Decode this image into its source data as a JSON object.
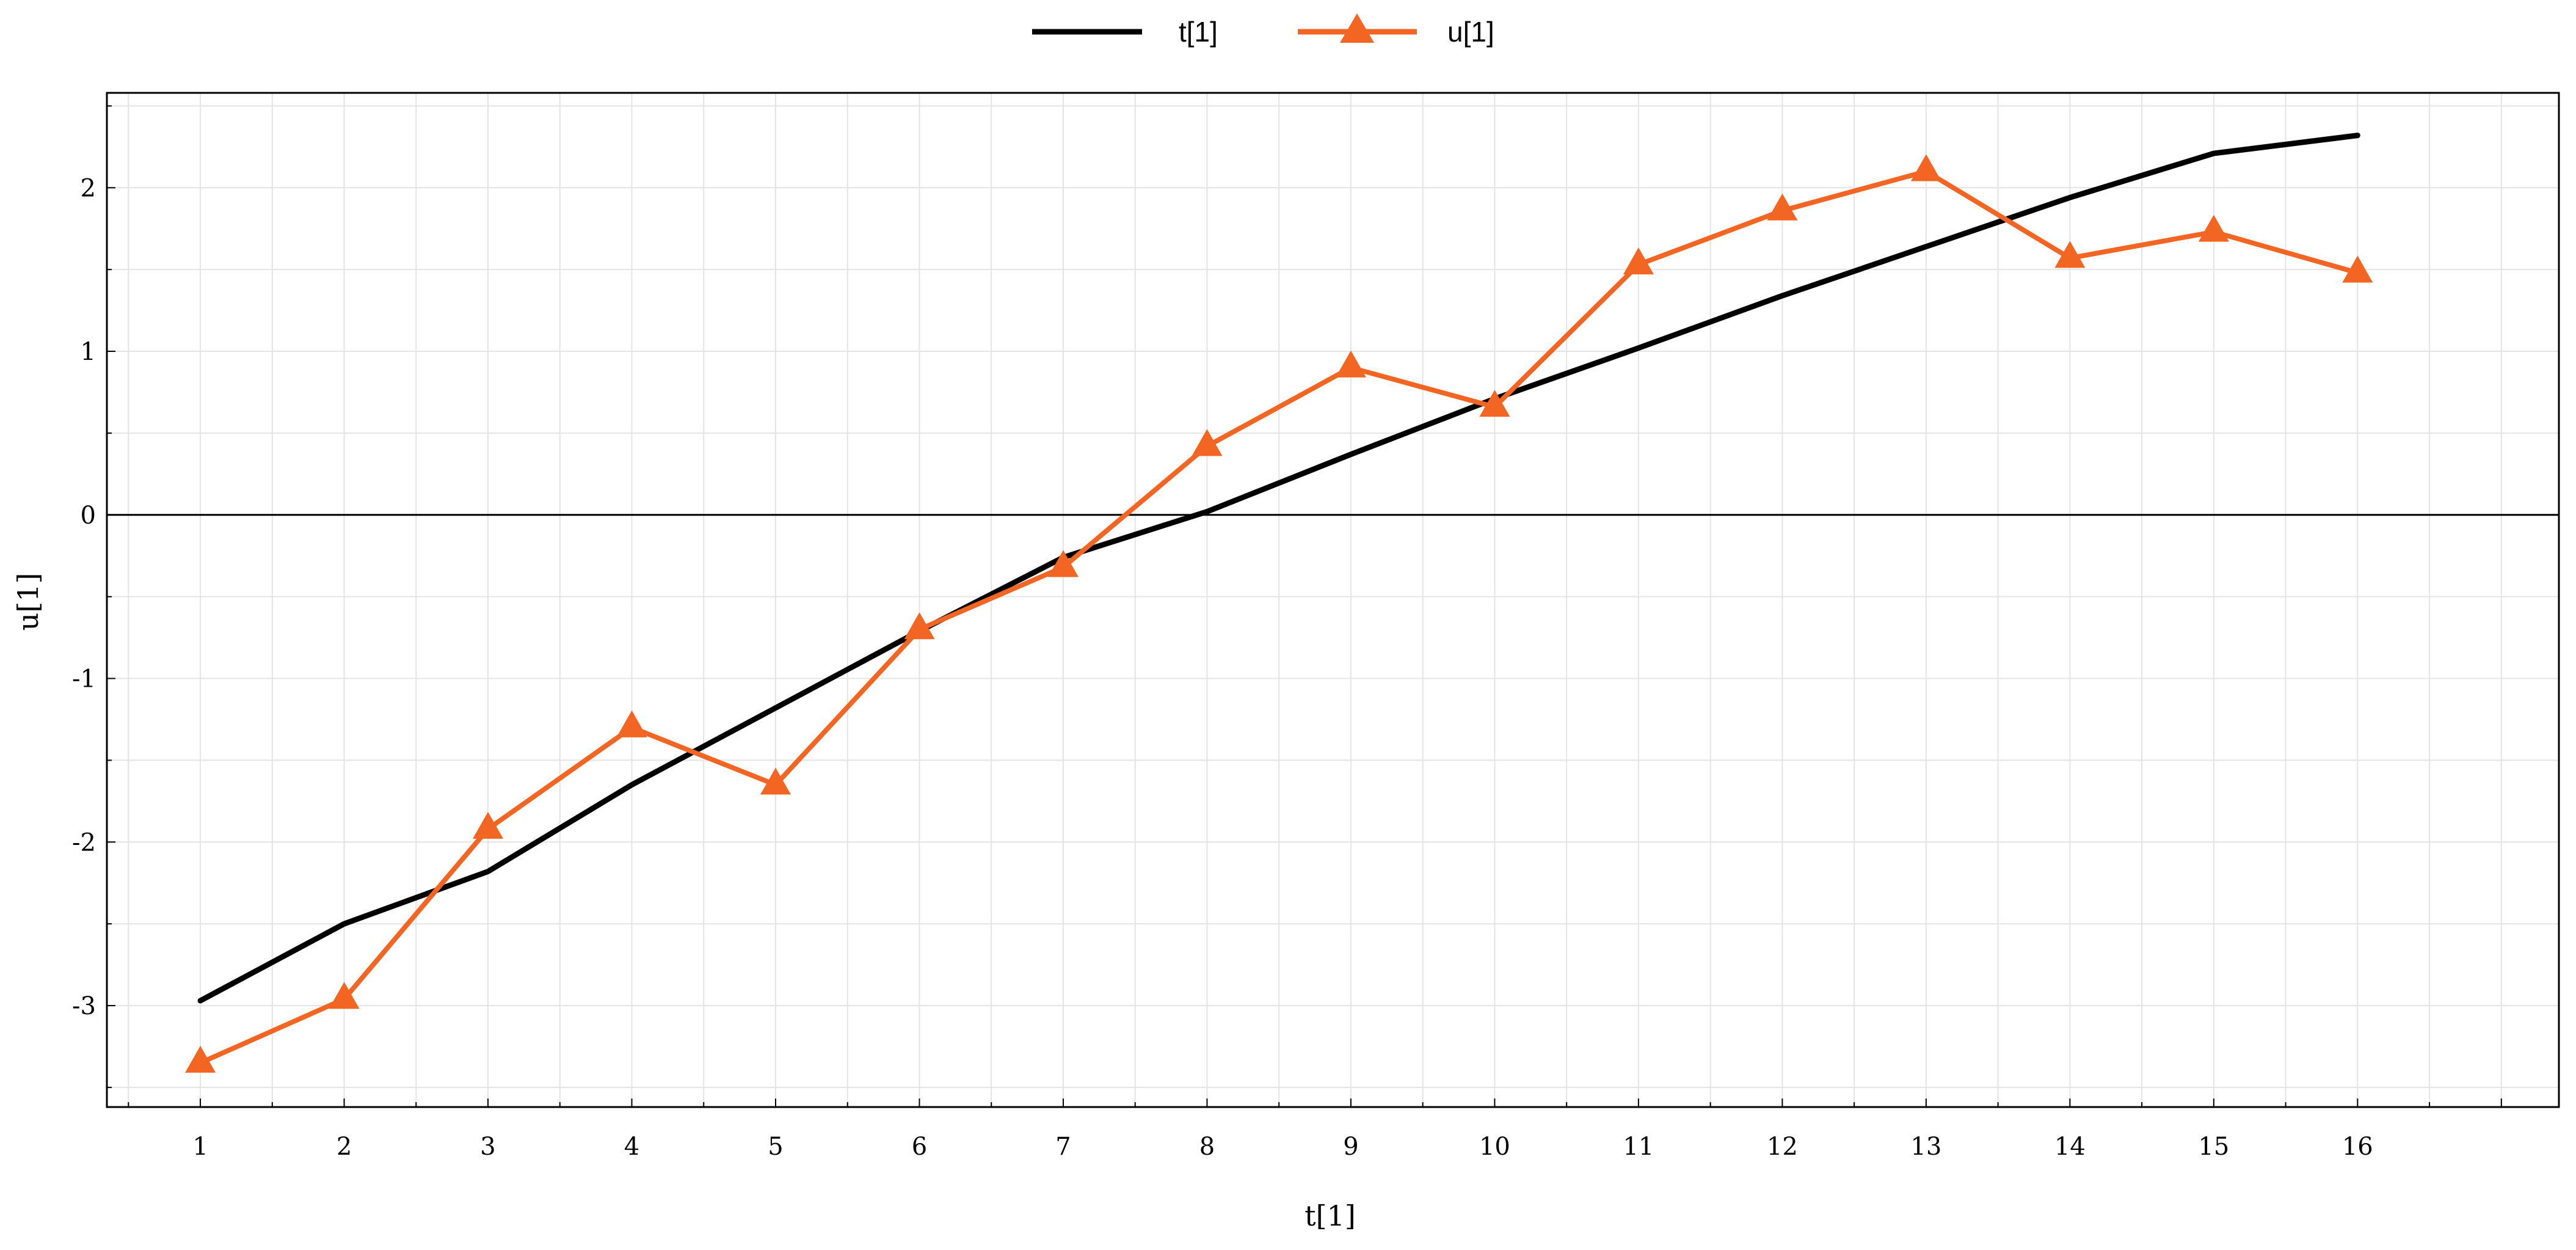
{
  "chart_data": {
    "type": "line",
    "title": "",
    "xlabel": "t[1]",
    "ylabel": "u[1]",
    "x": [
      1,
      2,
      3,
      4,
      5,
      6,
      7,
      8,
      9,
      10,
      11,
      12,
      13,
      14,
      15,
      16
    ],
    "xlim": [
      0.35,
      17.4
    ],
    "ylim": [
      -3.62,
      2.58
    ],
    "x_ticks": [
      1,
      2,
      3,
      4,
      5,
      6,
      7,
      8,
      9,
      10,
      11,
      12,
      13,
      14,
      15,
      16
    ],
    "y_ticks": [
      -3,
      -2,
      -1,
      0,
      1,
      2
    ],
    "grid": true,
    "legend_position": "top-center",
    "series": [
      {
        "name": "t[1]",
        "color": "#000000",
        "marker": "none",
        "values": [
          -2.97,
          -2.5,
          -2.18,
          -1.65,
          -1.18,
          -0.71,
          -0.26,
          0.02,
          0.37,
          0.71,
          1.02,
          1.34,
          1.64,
          1.94,
          2.21,
          2.32
        ]
      },
      {
        "name": "u[1]",
        "color": "#f26522",
        "marker": "triangle",
        "values": [
          -3.35,
          -2.96,
          -1.92,
          -1.3,
          -1.65,
          -0.7,
          -0.32,
          0.42,
          0.9,
          0.66,
          1.53,
          1.86,
          2.1,
          1.57,
          1.73,
          1.48
        ]
      }
    ]
  }
}
